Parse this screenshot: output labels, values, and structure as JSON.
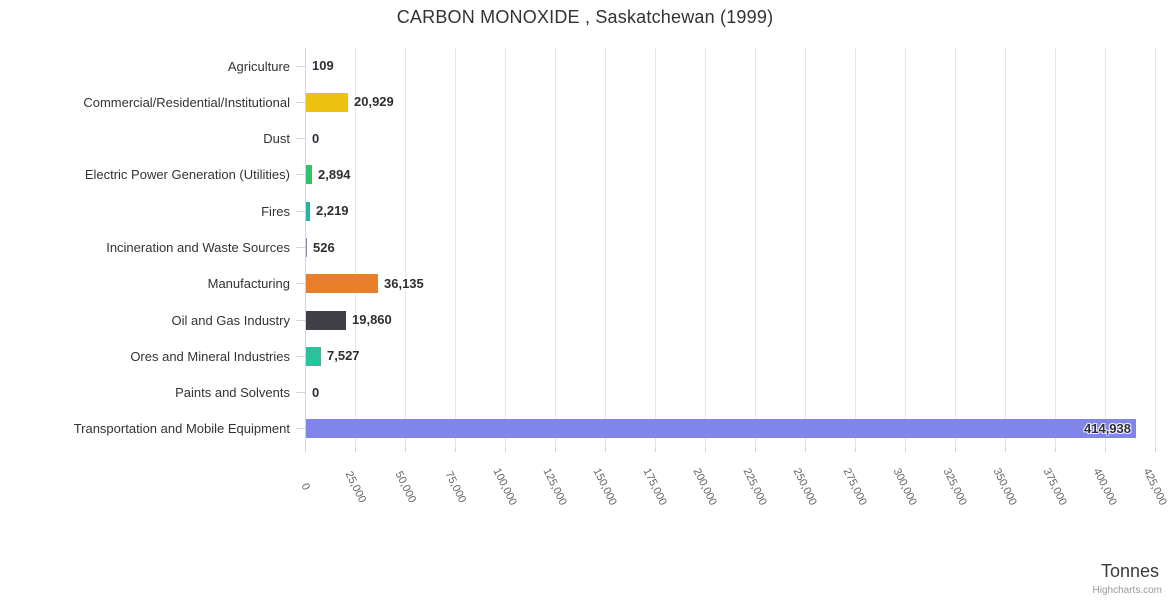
{
  "title": "CARBON MONOXIDE , Saskatchewan (1999)",
  "axis_title": "Tonnes",
  "credit": "Highcharts.com",
  "ui_colors": {
    "grid": "#e6e6e6",
    "axis_line": "#ccd6eb",
    "label_text": "#333333",
    "tick_text": "#666666",
    "credit_text": "#999999"
  },
  "chart_data": {
    "type": "bar",
    "orientation": "horizontal",
    "title": "CARBON MONOXIDE , Saskatchewan (1999)",
    "xlabel": "Tonnes",
    "xlim": [
      0,
      425000
    ],
    "xtick_step": 25000,
    "grid": true,
    "legend": false,
    "categories": [
      "Agriculture",
      "Commercial/Residential/Institutional",
      "Dust",
      "Electric Power Generation (Utilities)",
      "Fires",
      "Incineration and Waste Sources",
      "Manufacturing",
      "Oil and Gas Industry",
      "Ores and Mineral Industries",
      "Paints and Solvents",
      "Transportation and Mobile Equipment"
    ],
    "values": [
      109,
      20929,
      0,
      2894,
      2219,
      526,
      36135,
      19860,
      7527,
      0,
      414938
    ],
    "value_labels": [
      "109",
      "20,929",
      "0",
      "2,894",
      "2,219",
      "526",
      "36,135",
      "19,860",
      "7,527",
      "0",
      "414,938"
    ],
    "bar_colors": [
      "#7cb5ec",
      "#eec211",
      "#a9afb5",
      "#33c168",
      "#28b2a3",
      "#8d9298",
      "#e8802b",
      "#413f46",
      "#2bc19c",
      "#c5cad0",
      "#8085e9"
    ],
    "xtick_labels": [
      "0",
      "25,000",
      "50,000",
      "75,000",
      "100,000",
      "125,000",
      "150,000",
      "175,000",
      "200,000",
      "225,000",
      "250,000",
      "275,000",
      "300,000",
      "325,000",
      "350,000",
      "375,000",
      "400,000",
      "425,000"
    ]
  }
}
